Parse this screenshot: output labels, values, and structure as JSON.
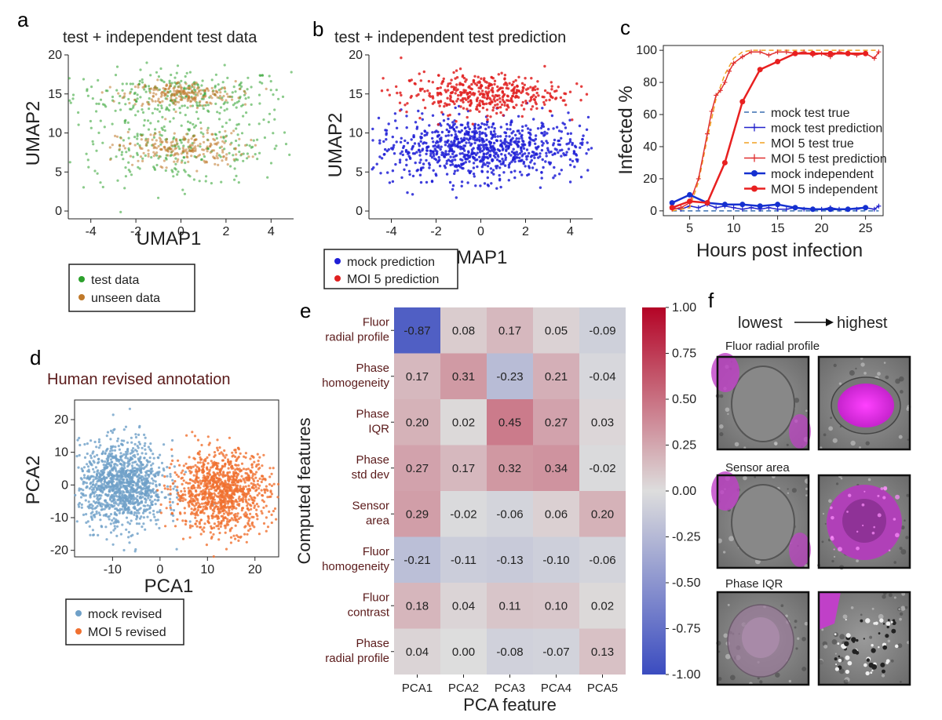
{
  "panels": {
    "a": {
      "label": "a",
      "title": "test  + independent test data",
      "xlabel": "UMAP1",
      "ylabel": "UMAP2",
      "legend": [
        {
          "label": "test data",
          "color": "#2ca02c"
        },
        {
          "label": "unseen data",
          "color": "#c0792a"
        }
      ]
    },
    "b": {
      "label": "b",
      "title": "test + independent test prediction",
      "xlabel": "UMAP1",
      "ylabel": "UMAP2",
      "legend": [
        {
          "label": "mock prediction",
          "color": "#1f1fd6"
        },
        {
          "label": "MOI 5 prediction",
          "color": "#e02020"
        }
      ]
    },
    "c": {
      "label": "c"
    },
    "d": {
      "label": "d",
      "title": "Human revised annotation",
      "xlabel": "PCA1",
      "ylabel": "PCA2",
      "legend": [
        {
          "label": "mock revised",
          "color": "#6fa0c8"
        },
        {
          "label": "MOI 5 revised",
          "color": "#f07030"
        }
      ]
    },
    "e": {
      "label": "e"
    },
    "f": {
      "label": "f",
      "scale_low": "lowest",
      "scale_high": "highest",
      "groups": [
        {
          "title": "Fluor radial profile"
        },
        {
          "title": "Sensor area"
        },
        {
          "title": "Phase IQR"
        }
      ]
    }
  },
  "chart_data": [
    {
      "id": "a",
      "type": "scatter",
      "title": "test  + independent test data",
      "xlabel": "UMAP1",
      "ylabel": "UMAP2",
      "xlim": [
        -5,
        5
      ],
      "ylim": [
        -1,
        20
      ],
      "xticks": [
        -4,
        -2,
        0,
        2,
        4
      ],
      "yticks": [
        0,
        5,
        10,
        15,
        20
      ],
      "series": [
        {
          "name": "test data",
          "color": "#2ca02c",
          "clusters": [
            [
              0,
              15,
              2.4,
              1.6
            ],
            [
              0,
              8,
              2.6,
              2.4
            ]
          ]
        },
        {
          "name": "unseen data",
          "color": "#c0792a",
          "clusters": [
            [
              0,
              15,
              1.2,
              0.8
            ],
            [
              0,
              8,
              1.4,
              1.1
            ]
          ]
        }
      ]
    },
    {
      "id": "b",
      "type": "scatter",
      "title": "test + independent test prediction",
      "xlabel": "UMAP1",
      "ylabel": "UMAP2",
      "xlim": [
        -5,
        5
      ],
      "ylim": [
        -1,
        20
      ],
      "xticks": [
        -4,
        -2,
        0,
        2,
        4
      ],
      "yticks": [
        0,
        5,
        10,
        15,
        20
      ],
      "series": [
        {
          "name": "mock prediction",
          "color": "#1f1fd6",
          "clusters": [
            [
              0,
              8,
              2.4,
              2.0
            ]
          ]
        },
        {
          "name": "MOI 5 prediction",
          "color": "#e02020",
          "clusters": [
            [
              0,
              15,
              1.8,
              1.3
            ]
          ]
        }
      ]
    },
    {
      "id": "c",
      "type": "line",
      "xlabel": "Hours post infection",
      "ylabel": "Infected %",
      "xlim": [
        2,
        27
      ],
      "ylim": [
        -3,
        103
      ],
      "xticks": [
        5,
        10,
        15,
        20,
        25
      ],
      "yticks": [
        0,
        20,
        40,
        60,
        80,
        100
      ],
      "series": [
        {
          "name": "mock test true",
          "color": "#3a6fb0",
          "dash": "6,4",
          "width": 1.5,
          "marker": "none",
          "x": [
            3,
            5,
            7,
            9,
            11,
            13,
            15,
            17,
            19,
            21,
            23,
            25,
            26.5
          ],
          "y": [
            0,
            0,
            0,
            0,
            0,
            0,
            0,
            0,
            0,
            0,
            0,
            0,
            0
          ]
        },
        {
          "name": "mock test prediction",
          "color": "#2222cc",
          "dash": "",
          "width": 1.5,
          "marker": "plus",
          "x": [
            3,
            4,
            5,
            6,
            7,
            8,
            9,
            10,
            11,
            12,
            13,
            14,
            15,
            16,
            17,
            18,
            19,
            20,
            21,
            22,
            23,
            24,
            25,
            26,
            26.5
          ],
          "y": [
            2,
            1,
            3,
            2,
            4,
            2,
            3,
            2,
            1,
            2,
            1,
            2,
            1,
            1,
            2,
            1,
            1,
            1,
            2,
            1,
            1,
            1,
            2,
            1,
            3
          ]
        },
        {
          "name": "MOI 5 test true",
          "color": "#f0a020",
          "dash": "6,4",
          "width": 1.5,
          "marker": "none",
          "x": [
            3,
            5,
            6,
            7,
            8,
            9,
            10,
            11,
            12,
            13,
            14,
            15,
            17,
            19,
            21,
            23,
            25,
            26.5
          ],
          "y": [
            0,
            2,
            18,
            45,
            70,
            85,
            95,
            99,
            100,
            100,
            100,
            100,
            100,
            100,
            100,
            100,
            100,
            100
          ]
        },
        {
          "name": "MOI 5 test prediction",
          "color": "#e03030",
          "dash": "",
          "width": 1.5,
          "marker": "plus",
          "x": [
            3,
            4,
            5,
            6,
            7,
            7.5,
            8,
            8.5,
            9,
            9.5,
            10,
            11,
            12,
            13,
            14,
            15,
            16,
            17,
            18,
            19,
            20,
            21,
            22,
            23,
            24,
            25,
            26,
            26.5
          ],
          "y": [
            1,
            2,
            5,
            20,
            48,
            62,
            72,
            75,
            80,
            87,
            92,
            96,
            99,
            99,
            97,
            99,
            99,
            98,
            99,
            97,
            98,
            96,
            99,
            98,
            97,
            98,
            95,
            99
          ]
        },
        {
          "name": "mock independent",
          "color": "#1530d0",
          "dash": "",
          "width": 2.5,
          "marker": "dot",
          "x": [
            3,
            5,
            7,
            9,
            11,
            13,
            15,
            17,
            19,
            21,
            23,
            25
          ],
          "y": [
            5,
            10,
            5,
            4,
            4,
            3,
            4,
            2,
            1,
            1,
            1,
            2
          ]
        },
        {
          "name": "MOI 5 independent",
          "color": "#e82020",
          "dash": "",
          "width": 2.5,
          "marker": "dot",
          "x": [
            3,
            5,
            7,
            9,
            11,
            13,
            15,
            17,
            19,
            21,
            23,
            25
          ],
          "y": [
            2,
            6,
            5,
            30,
            68,
            88,
            93,
            98,
            98,
            98,
            98,
            98
          ]
        }
      ]
    },
    {
      "id": "d",
      "type": "scatter",
      "title": "Human revised annotation",
      "xlabel": "PCA1",
      "ylabel": "PCA2",
      "xlim": [
        -18,
        25
      ],
      "ylim": [
        -22,
        26
      ],
      "xticks": [
        -10,
        0,
        10,
        20
      ],
      "yticks": [
        -20,
        -10,
        0,
        10,
        20
      ],
      "series": [
        {
          "name": "mock revised",
          "color": "#6fa0c8",
          "clusters": [
            [
              -8,
              0,
              4.5,
              6.5
            ]
          ]
        },
        {
          "name": "MOI 5 revised",
          "color": "#f07030",
          "clusters": [
            [
              13,
              -2,
              5,
              6
            ]
          ]
        }
      ]
    },
    {
      "id": "e",
      "type": "heatmap",
      "xlabel": "PCA feature",
      "ylabel": "Computed features",
      "columns": [
        "PCA1",
        "PCA2",
        "PCA3",
        "PCA4",
        "PCA5"
      ],
      "rows": [
        [
          "Fluor",
          "radial profile"
        ],
        [
          "Phase",
          "homogeneity"
        ],
        [
          "Phase",
          "IQR"
        ],
        [
          "Phase",
          "std dev"
        ],
        [
          "Sensor",
          "area"
        ],
        [
          "Fluor",
          "homogeneity"
        ],
        [
          "Fluor",
          "contrast"
        ],
        [
          "Phase",
          "radial profile"
        ]
      ],
      "values": [
        [
          -0.87,
          0.08,
          0.17,
          0.05,
          -0.09
        ],
        [
          0.17,
          0.31,
          -0.23,
          0.21,
          -0.04
        ],
        [
          0.2,
          0.02,
          0.45,
          0.27,
          0.03
        ],
        [
          0.27,
          0.17,
          0.32,
          0.34,
          -0.02
        ],
        [
          0.29,
          -0.02,
          -0.06,
          0.06,
          0.2
        ],
        [
          -0.21,
          -0.11,
          -0.13,
          -0.1,
          -0.06
        ],
        [
          0.18,
          0.04,
          0.11,
          0.1,
          0.02
        ],
        [
          0.04,
          0.0,
          -0.08,
          -0.07,
          0.13
        ]
      ],
      "vmin": -1.0,
      "vmax": 1.0,
      "colorbar_ticks": [
        "1.00",
        "0.75",
        "0.50",
        "0.25",
        "0.00",
        "-0.25",
        "-0.50",
        "-0.75",
        "-1.00"
      ]
    }
  ]
}
